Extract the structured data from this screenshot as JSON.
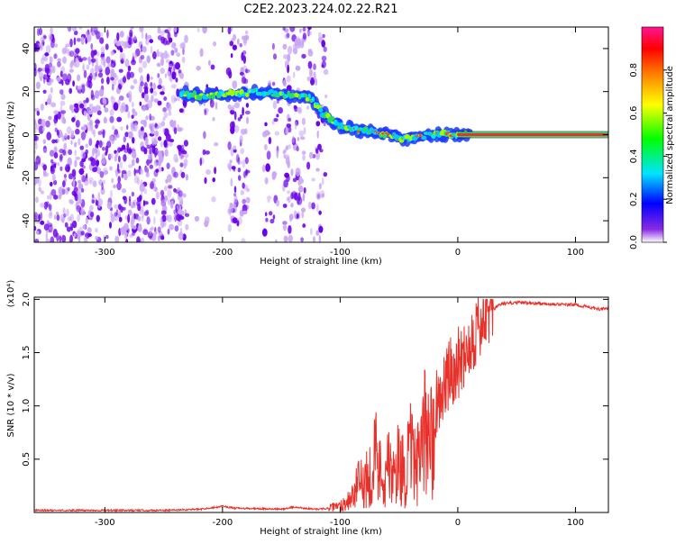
{
  "figure": {
    "title": "C2E2.2023.224.02.22.R21"
  },
  "colors": {
    "snr_line": "#e8312a",
    "tone_core": "#e8312a",
    "tone_edge": "#2bd96b",
    "noise_dark": "#6a00e8",
    "noise_light": "#c9a6f5"
  },
  "chart_data": [
    {
      "type": "heatmap",
      "xlabel": "Height of straight line (km)",
      "ylabel": "Frequency (Hz)",
      "xlim": [
        -360,
        128
      ],
      "ylim": [
        -50,
        50
      ],
      "xticks": [
        -300,
        -200,
        -100,
        0,
        100
      ],
      "yticks": [
        -40,
        -20,
        0,
        20,
        40
      ],
      "colorbar": {
        "label": "Normalized spectral amplitude",
        "range": [
          0.0,
          1.0
        ],
        "ticks": [
          "0.0",
          "0.2",
          "0.4",
          "0.6",
          "0.8"
        ],
        "colormap": [
          "#ffffff",
          "#8a2be2",
          "#0000ff",
          "#00e5ff",
          "#00ff00",
          "#ffff00",
          "#ff8000",
          "#ff0000",
          "#ff1493"
        ]
      },
      "tone_track": {
        "x": [
          -235,
          -215,
          -200,
          -185,
          -170,
          -155,
          -140,
          -125,
          -115,
          -100,
          -85,
          -70,
          -55,
          -40,
          -25,
          -10,
          0,
          128
        ],
        "frequency": [
          19,
          18,
          19,
          19,
          20,
          19,
          18,
          17,
          10,
          4,
          2,
          1,
          -1,
          -2,
          0,
          0,
          0,
          0
        ],
        "amplitude": [
          0.45,
          0.5,
          0.5,
          0.45,
          0.5,
          0.5,
          0.45,
          0.5,
          0.45,
          0.5,
          0.55,
          0.55,
          0.6,
          0.6,
          0.7,
          0.8,
          0.95,
          0.95
        ]
      },
      "noise_region": {
        "x_range": [
          -360,
          -110
        ],
        "y_range": [
          -50,
          50
        ],
        "amplitude_range": [
          0.02,
          0.15
        ]
      }
    },
    {
      "type": "line",
      "xlabel": "Height of straight line (km)",
      "ylabel": "SNR (10 * v/v)",
      "y_multiplier": "(x10⁴)",
      "xlim": [
        -360,
        128
      ],
      "ylim": [
        0,
        2.02
      ],
      "xticks": [
        -300,
        -200,
        -100,
        0,
        100
      ],
      "yticks": [
        0.5,
        1.0,
        1.5,
        2.0
      ],
      "series": [
        {
          "x": [
            -360,
            -300,
            -250,
            -220,
            -205,
            -200,
            -190,
            -150,
            -140,
            -120,
            -110,
            -100,
            -95,
            -90,
            -85,
            -80,
            -75,
            -70,
            -65,
            -60,
            -55,
            -50,
            -45,
            -40,
            -35,
            -30,
            -25,
            -20,
            -15,
            -10,
            -5,
            0,
            5,
            10,
            15,
            20,
            25,
            30,
            35,
            40,
            50,
            60,
            70,
            80,
            90,
            100,
            110,
            120,
            128
          ],
          "y": [
            0.02,
            0.02,
            0.02,
            0.03,
            0.05,
            0.06,
            0.04,
            0.03,
            0.05,
            0.03,
            0.04,
            0.06,
            0.1,
            0.15,
            0.25,
            0.3,
            0.35,
            0.55,
            0.35,
            0.45,
            0.3,
            0.5,
            0.35,
            0.55,
            0.4,
            0.6,
            0.9,
            1.0,
            1.1,
            1.2,
            1.35,
            1.4,
            1.5,
            1.6,
            1.7,
            1.78,
            1.85,
            1.9,
            1.95,
            1.96,
            1.97,
            1.97,
            1.96,
            1.96,
            1.95,
            1.95,
            1.93,
            1.91,
            1.91
          ]
        }
      ]
    }
  ]
}
